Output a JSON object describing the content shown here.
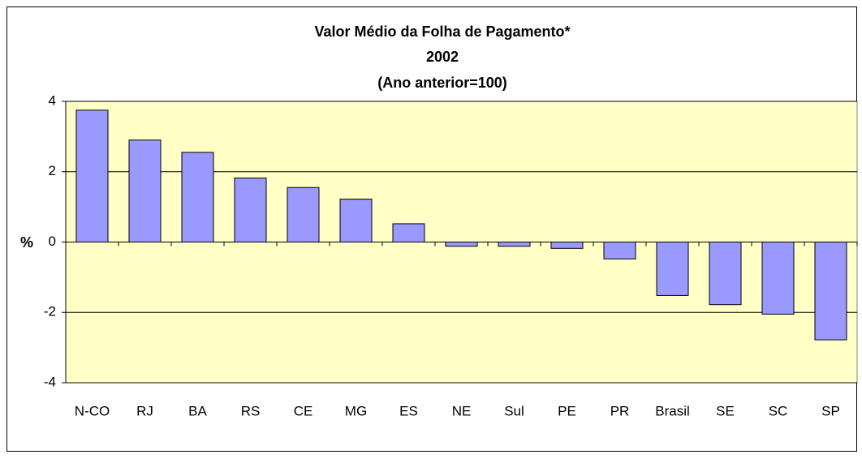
{
  "chart_data": {
    "type": "bar",
    "title_lines": [
      "Valor Médio da Folha de Pagamento*",
      "2002",
      "(Ano anterior=100)"
    ],
    "y_label": "%",
    "categories": [
      "N-CO",
      "RJ",
      "BA",
      "RS",
      "CE",
      "MG",
      "ES",
      "NE",
      "Sul",
      "PE",
      "PR",
      "Brasil",
      "SE",
      "SC",
      "SP"
    ],
    "values": [
      3.75,
      2.9,
      2.55,
      1.82,
      1.55,
      1.22,
      0.52,
      -0.12,
      -0.12,
      -0.18,
      -0.48,
      -1.52,
      -1.78,
      -2.05,
      -2.78
    ],
    "color": "#9999ff",
    "ylim": [
      -4,
      4
    ],
    "yticks": [
      -4,
      -2,
      0,
      2,
      4
    ],
    "grid": true
  }
}
